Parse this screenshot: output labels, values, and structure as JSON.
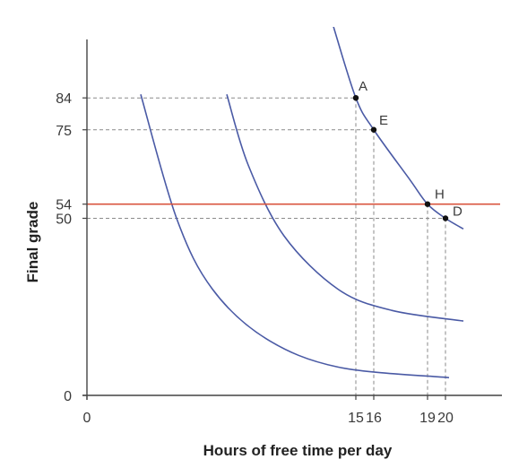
{
  "chart_data": {
    "type": "line",
    "title": "",
    "xlabel": "Hours of free time per day",
    "ylabel": "Final grade",
    "xlim": [
      0,
      24
    ],
    "ylim": [
      0,
      90
    ],
    "x_ticks": [
      {
        "value": 0,
        "label": "0"
      },
      {
        "value": 15,
        "label": "15"
      },
      {
        "value": 16,
        "label": "16"
      },
      {
        "value": 19,
        "label": "19"
      },
      {
        "value": 20,
        "label": "20"
      }
    ],
    "y_ticks": [
      {
        "value": 0,
        "label": "0"
      },
      {
        "value": 50,
        "label": "50"
      },
      {
        "value": 54,
        "label": "54"
      },
      {
        "value": 75,
        "label": "75"
      },
      {
        "value": 84,
        "label": "84"
      }
    ],
    "curves": [
      {
        "points": [
          [
            3,
            85
          ],
          [
            5,
            50
          ],
          [
            7,
            30
          ],
          [
            10,
            16
          ],
          [
            14,
            8
          ],
          [
            20.2,
            5
          ]
        ]
      },
      {
        "points": [
          [
            7.8,
            85
          ],
          [
            9,
            65
          ],
          [
            11,
            45
          ],
          [
            14,
            30
          ],
          [
            17,
            24
          ],
          [
            21,
            21
          ]
        ]
      },
      {
        "points": [
          [
            13.7,
            105
          ],
          [
            15,
            84
          ],
          [
            16,
            75
          ],
          [
            18,
            61
          ],
          [
            19,
            54
          ],
          [
            20,
            50
          ],
          [
            21,
            47
          ]
        ]
      }
    ],
    "horizontal_line": {
      "y": 54,
      "color": "#d9553f"
    },
    "points": [
      {
        "label": "A",
        "x": 15,
        "y": 84
      },
      {
        "label": "E",
        "x": 16,
        "y": 75
      },
      {
        "label": "H",
        "x": 19,
        "y": 54
      },
      {
        "label": "D",
        "x": 20,
        "y": 50
      }
    ],
    "colors": {
      "curve": "#4a5aa5",
      "axis": "#444444",
      "guide": "#8a8a8a",
      "point": "#111111"
    }
  }
}
